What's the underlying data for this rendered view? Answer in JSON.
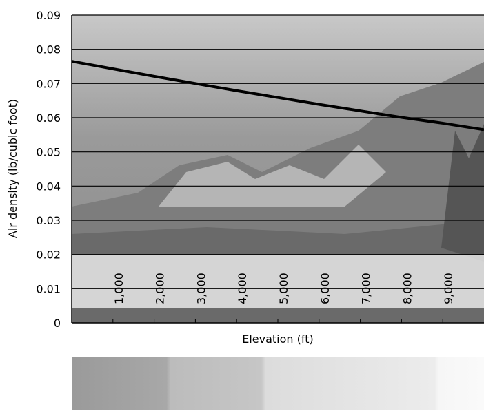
{
  "chart_data": {
    "type": "line",
    "x_label": "Elevation (ft)",
    "y_label": "Air density (lb/cubic foot)",
    "x": [
      0,
      1000,
      2000,
      3000,
      4000,
      5000,
      6000,
      7000,
      8000,
      9000,
      10000
    ],
    "series": [
      {
        "color": "#000000",
        "values": [
          0.0765,
          0.0743,
          0.0721,
          0.07,
          0.0679,
          0.0659,
          0.0639,
          0.062,
          0.0601,
          0.0584,
          0.0565
        ]
      }
    ],
    "xlim": [
      0,
      10000
    ],
    "xticks": [
      {
        "value": 1000,
        "label": "1,000"
      },
      {
        "value": 2000,
        "label": "2,000"
      },
      {
        "value": 3000,
        "label": "3,000"
      },
      {
        "value": 4000,
        "label": "4,000"
      },
      {
        "value": 5000,
        "label": "5,000"
      },
      {
        "value": 6000,
        "label": "6,000"
      },
      {
        "value": 7000,
        "label": "7,000"
      },
      {
        "value": 8000,
        "label": "8,000"
      },
      {
        "value": 9000,
        "label": "9,000"
      }
    ],
    "ylim": [
      0,
      0.09
    ],
    "yticks": [
      0,
      0.01,
      0.02,
      0.03,
      0.04,
      0.05,
      0.06,
      0.07,
      0.08,
      0.09
    ],
    "grid": true
  }
}
